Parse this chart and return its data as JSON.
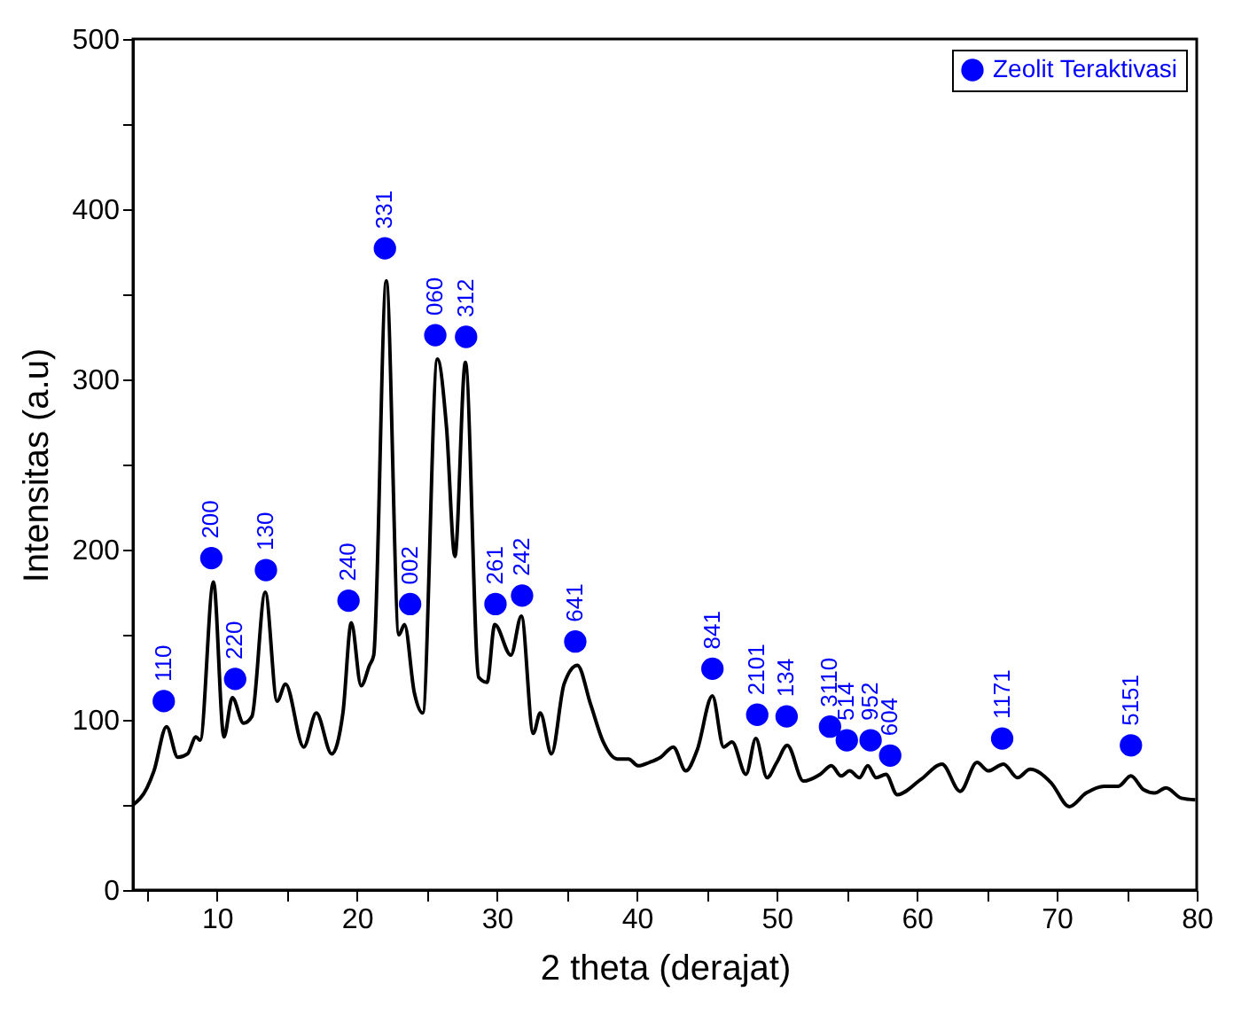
{
  "chart_data": {
    "type": "line",
    "xlabel": "2 theta (derajat)",
    "ylabel": "Intensitas (a.u)",
    "xlim": [
      4,
      80
    ],
    "ylim": [
      0,
      500
    ],
    "xticks": [
      {
        "value": 5,
        "label": null
      },
      10,
      {
        "value": 15,
        "label": null
      },
      20,
      {
        "value": 25,
        "label": null
      },
      30,
      {
        "value": 35,
        "label": null
      },
      40,
      {
        "value": 45,
        "label": null
      },
      50,
      {
        "value": 55,
        "label": null
      },
      60,
      {
        "value": 65,
        "label": null
      },
      70,
      {
        "value": 75,
        "label": null
      },
      80
    ],
    "yticks": [
      0,
      {
        "value": 50,
        "label": null
      },
      100,
      {
        "value": 150,
        "label": null
      },
      200,
      {
        "value": 250,
        "label": null
      },
      300,
      {
        "value": 350,
        "label": null
      },
      400,
      {
        "value": 450,
        "label": null
      },
      500
    ],
    "grid": false,
    "legend": "top right",
    "line_style": "solid",
    "annotations": [
      {
        "text": "110",
        "x": 6.2,
        "y": 111
      },
      {
        "text": "200",
        "x": 9.6,
        "y": 195
      },
      {
        "text": "220",
        "x": 11.3,
        "y": 124
      },
      {
        "text": "130",
        "x": 13.5,
        "y": 188
      },
      {
        "text": "240",
        "x": 19.4,
        "y": 170
      },
      {
        "text": "331",
        "x": 22,
        "y": 377
      },
      {
        "text": "002",
        "x": 23.8,
        "y": 168
      },
      {
        "text": "060",
        "x": 25.6,
        "y": 326
      },
      {
        "text": "312",
        "x": 27.8,
        "y": 325
      },
      {
        "text": "261",
        "x": 29.9,
        "y": 168
      },
      {
        "text": "242",
        "x": 31.8,
        "y": 173
      },
      {
        "text": "641",
        "x": 35.6,
        "y": 146
      },
      {
        "text": "841",
        "x": 45.4,
        "y": 130
      },
      {
        "text": "2101",
        "x": 48.6,
        "y": 103
      },
      {
        "text": "134",
        "x": 50.7,
        "y": 102
      },
      {
        "text": "3110",
        "x": 53.8,
        "y": 96
      },
      {
        "text": "514",
        "x": 55,
        "y": 88
      },
      {
        "text": "952",
        "x": 56.7,
        "y": 88
      },
      {
        "text": "604",
        "x": 58.1,
        "y": 79
      },
      {
        "text": "1171",
        "x": 66.1,
        "y": 89
      },
      {
        "text": "5151",
        "x": 75.3,
        "y": 85
      }
    ],
    "series": [
      {
        "type": "line",
        "color": "#000000",
        "x": [
          4,
          5,
          5.5,
          6.4,
          7.2,
          7.9,
          8.5,
          8.8,
          9.75,
          10.5,
          11.1,
          11.9,
          12.5,
          13.45,
          14.3,
          14.9,
          16.2,
          17.1,
          18.2,
          19,
          19.6,
          20.3,
          20.9,
          21.2,
          22.1,
          23,
          23.4,
          24.1,
          24.7,
          25.75,
          26.4,
          27,
          27.75,
          28.7,
          29.3,
          29.85,
          31,
          31.75,
          32.6,
          33.1,
          33.9,
          34.8,
          35.75,
          36.7,
          37.6,
          38.6,
          39.4,
          40.1,
          40.9,
          41.7,
          42.6,
          43.5,
          44.3,
          45.4,
          46.2,
          46.8,
          47.8,
          48.5,
          49.3,
          50,
          50.75,
          51.9,
          53.1,
          53.9,
          54.6,
          55.2,
          55.9,
          56.5,
          57.1,
          57.8,
          58.6,
          60.3,
          61.8,
          63.1,
          64.3,
          65.1,
          66.2,
          67.2,
          68.1,
          69.6,
          70.9,
          72.1,
          73.4,
          74.4,
          75.3,
          76.2,
          77,
          77.8,
          78.9,
          79.9
        ],
        "values": [
          50,
          60,
          70,
          96,
          78,
          80,
          90,
          88,
          181,
          90,
          113,
          98,
          102,
          175,
          111,
          121,
          84,
          104,
          80,
          104,
          157,
          120,
          132,
          138,
          358,
          150,
          156,
          116,
          104,
          312,
          272,
          196,
          310,
          125,
          122,
          156,
          138,
          161,
          92,
          104,
          80,
          121,
          132,
          109,
          87,
          77,
          77,
          73,
          75,
          78,
          84,
          70,
          82,
          114,
          84,
          87,
          68,
          89,
          66,
          75,
          85,
          64,
          68,
          73,
          67,
          70,
          66,
          73,
          66,
          68,
          56,
          65,
          74,
          58,
          75,
          70,
          74,
          66,
          71,
          63,
          49,
          57,
          61,
          61,
          67,
          59,
          57,
          60,
          54,
          53
        ]
      },
      {
        "type": "scatter",
        "name": "Zeolit Teraktivasi",
        "color": "#0000ff",
        "marker": "circle",
        "x": [
          6.2,
          9.6,
          11.3,
          13.5,
          19.4,
          22,
          23.8,
          25.6,
          27.8,
          29.9,
          31.8,
          35.6,
          45.4,
          48.6,
          50.7,
          53.8,
          55,
          56.7,
          58.1,
          66.1,
          75.3
        ],
        "values": [
          111,
          195,
          124,
          188,
          170,
          377,
          168,
          326,
          325,
          168,
          173,
          146,
          130,
          103,
          102,
          96,
          88,
          88,
          79,
          89,
          85
        ]
      }
    ]
  }
}
